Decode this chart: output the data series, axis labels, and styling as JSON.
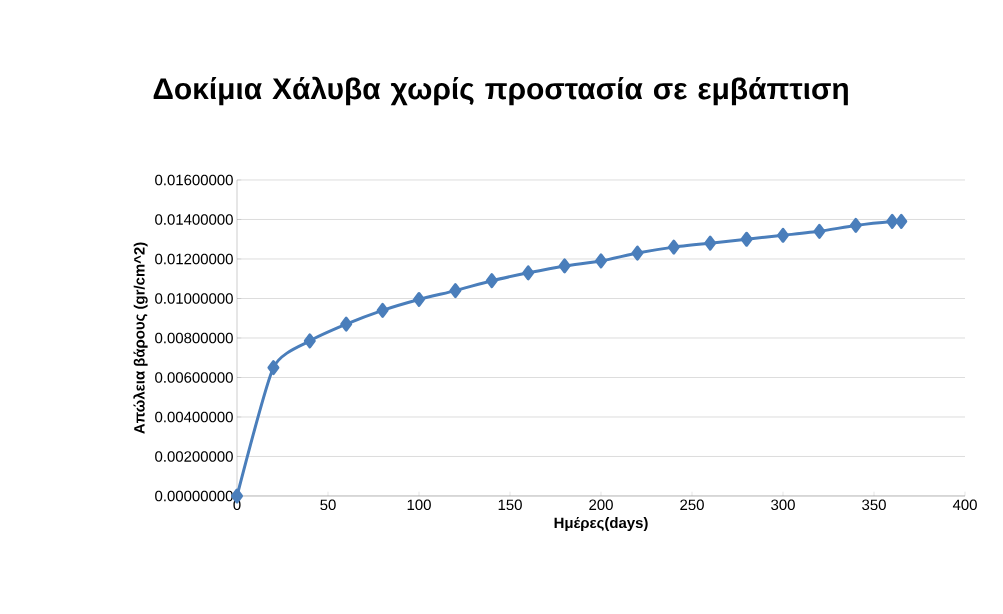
{
  "chart_data": {
    "type": "line",
    "title": "Δοκίμια Χάλυβα χωρίς προστασία σε εμβάπτιση",
    "xlabel": "Ημέρες(days)",
    "ylabel": "Απώλεια βάρους (gr/cm^2)",
    "x": [
      0,
      20,
      40,
      60,
      80,
      100,
      120,
      140,
      160,
      180,
      200,
      220,
      240,
      260,
      280,
      300,
      320,
      340,
      360,
      365
    ],
    "series": [
      {
        "color": "#4a7ebb",
        "values": [
          0,
          0.0065,
          0.00785,
          0.0087,
          0.0094,
          0.00995,
          0.0104,
          0.0109,
          0.0113,
          0.01165,
          0.0119,
          0.0123,
          0.0126,
          0.0128,
          0.013,
          0.0132,
          0.0134,
          0.0137,
          0.0139,
          0.0139
        ]
      }
    ],
    "xlim": [
      0,
      400
    ],
    "xticks": [
      0,
      50,
      100,
      150,
      200,
      250,
      300,
      350,
      400
    ],
    "ylim": [
      0,
      0.016
    ],
    "yticks": [
      {
        "value": 0,
        "label": "0.00000000"
      },
      {
        "value": 0.002,
        "label": "0.00200000"
      },
      {
        "value": 0.004,
        "label": "0.00400000"
      },
      {
        "value": 0.006,
        "label": "0.00600000"
      },
      {
        "value": 0.008,
        "label": "0.00800000"
      },
      {
        "value": 0.01,
        "label": "0.01000000"
      },
      {
        "value": 0.012,
        "label": "0.01200000"
      },
      {
        "value": 0.014,
        "label": "0.01400000"
      },
      {
        "value": 0.016,
        "label": "0.01600000"
      }
    ],
    "grid": "y",
    "marker": "diamond",
    "line_style": "solid"
  }
}
